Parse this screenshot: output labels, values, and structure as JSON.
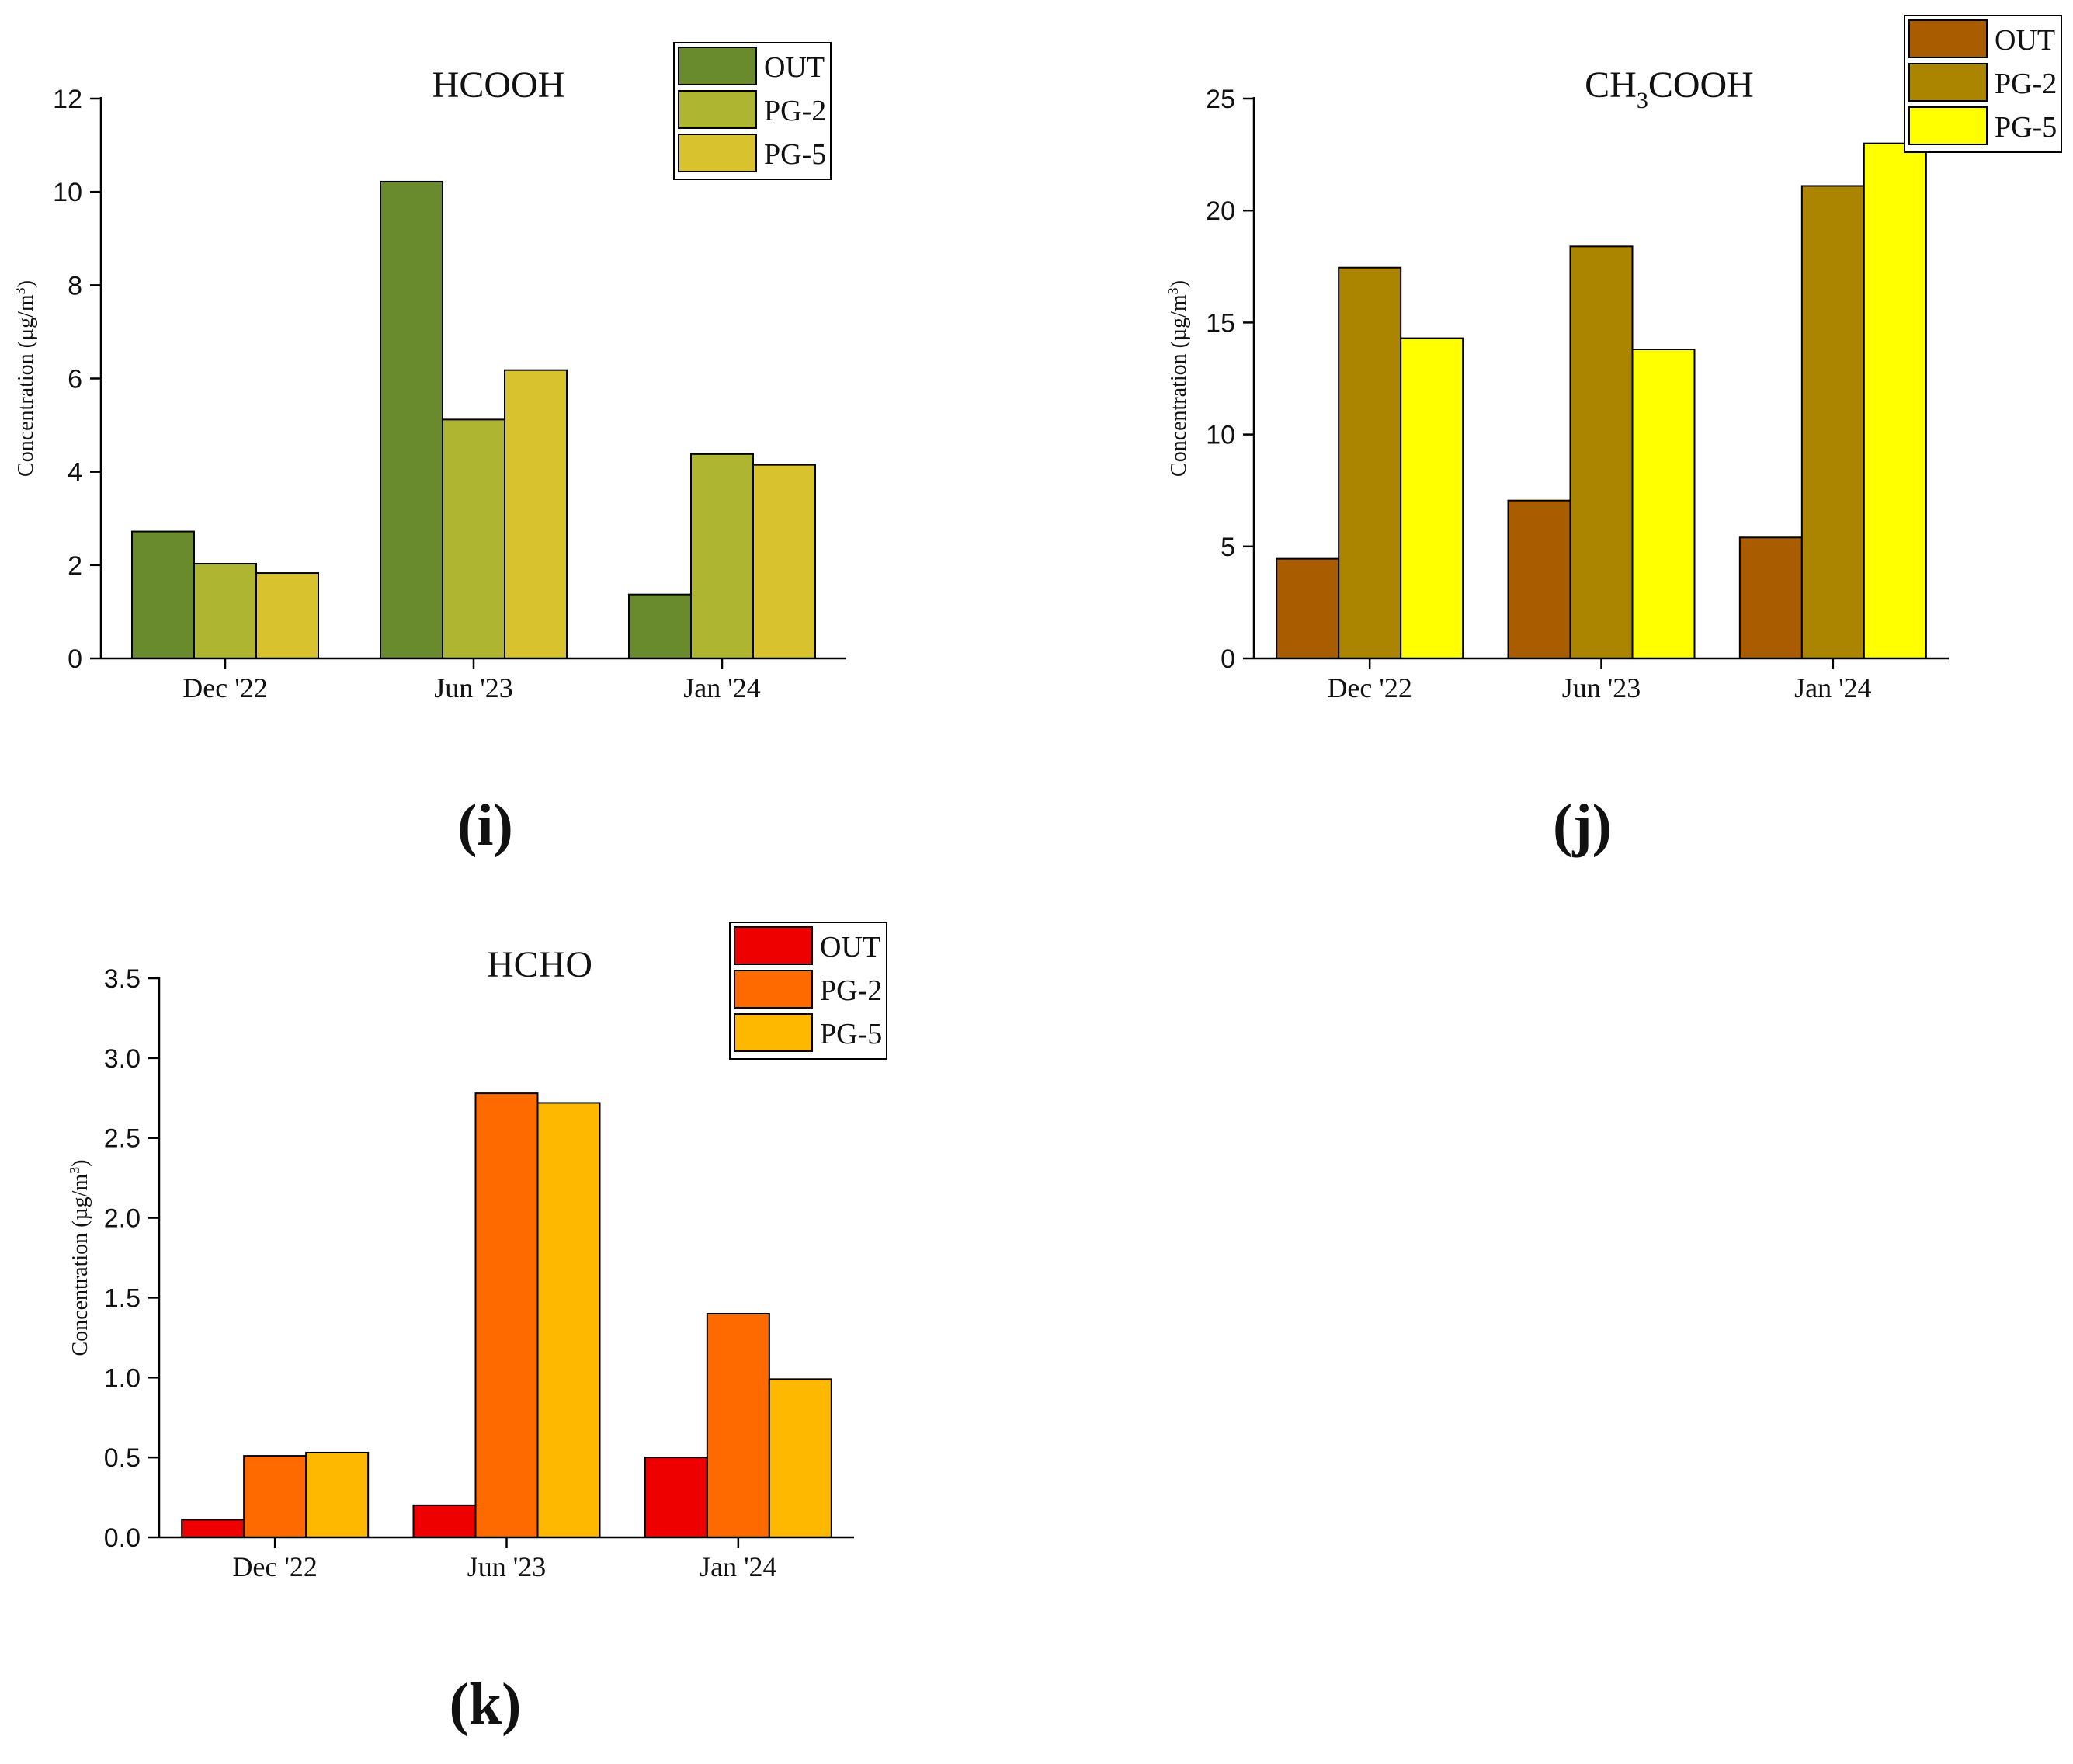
{
  "chart_data": [
    {
      "type": "bar",
      "panel_label": "(i)",
      "title": "HCOOH",
      "title_main": "HCOOH",
      "title_sub": "",
      "title_rest": "",
      "ylabel": "Concentration (µg/m",
      "ylabel_sup": "3",
      "ylabel_close": ")",
      "xlabel": "",
      "categories": [
        "Dec '22",
        "Jun '23",
        "Jan '24"
      ],
      "ylim": [
        0,
        12
      ],
      "yticks": [
        0,
        2,
        4,
        6,
        8,
        10,
        12
      ],
      "ytick_labels": [
        "0",
        "2",
        "4",
        "6",
        "8",
        "10",
        "12"
      ],
      "legend_position": "top-right",
      "series": [
        {
          "name": "OUT",
          "color": "#6a8a2e",
          "values": [
            2.72,
            10.22,
            1.37
          ]
        },
        {
          "name": "PG-2",
          "color": "#adb531",
          "values": [
            2.03,
            5.12,
            4.38
          ]
        },
        {
          "name": "PG-5",
          "color": "#d8c22e",
          "values": [
            1.83,
            6.18,
            4.15
          ]
        }
      ]
    },
    {
      "type": "bar",
      "panel_label": "(j)",
      "title": "CH3COOH",
      "title_main": "CH",
      "title_sub": "3",
      "title_rest": "COOH",
      "ylabel": "Concentration (µg/m",
      "ylabel_sup": "3",
      "ylabel_close": ")",
      "xlabel": "",
      "categories": [
        "Dec '22",
        "Jun '23",
        "Jan '24"
      ],
      "ylim": [
        0,
        25
      ],
      "yticks": [
        0,
        5,
        10,
        15,
        20,
        25
      ],
      "ytick_labels": [
        "0",
        "5",
        "10",
        "15",
        "20",
        "25"
      ],
      "legend_position": "top-right",
      "series": [
        {
          "name": "OUT",
          "color": "#aa5c00",
          "values": [
            4.45,
            7.05,
            5.4
          ]
        },
        {
          "name": "PG-2",
          "color": "#ab8400",
          "values": [
            17.45,
            18.4,
            21.1
          ]
        },
        {
          "name": "PG-5",
          "color": "#ffff00",
          "values": [
            14.3,
            13.8,
            23.0
          ]
        }
      ]
    },
    {
      "type": "bar",
      "panel_label": "(k)",
      "title": "HCHO",
      "title_main": "HCHO",
      "title_sub": "",
      "title_rest": "",
      "ylabel": "Concentration (µg/m",
      "ylabel_sup": "3",
      "ylabel_close": ")",
      "xlabel": "",
      "categories": [
        "Dec '22",
        "Jun '23",
        "Jan '24"
      ],
      "ylim": [
        0,
        3.5
      ],
      "yticks": [
        0,
        0.5,
        1.0,
        1.5,
        2.0,
        2.5,
        3.0,
        3.5
      ],
      "ytick_labels": [
        "0.0",
        "0.5",
        "1.0",
        "1.5",
        "2.0",
        "2.5",
        "3.0",
        "3.5"
      ],
      "legend_position": "top-right",
      "series": [
        {
          "name": "OUT",
          "color": "#ee0000",
          "values": [
            0.11,
            0.2,
            0.5
          ]
        },
        {
          "name": "PG-2",
          "color": "#ff6a00",
          "values": [
            0.51,
            2.78,
            1.4
          ]
        },
        {
          "name": "PG-5",
          "color": "#ffb800",
          "values": [
            0.53,
            2.72,
            0.99
          ]
        }
      ]
    }
  ]
}
